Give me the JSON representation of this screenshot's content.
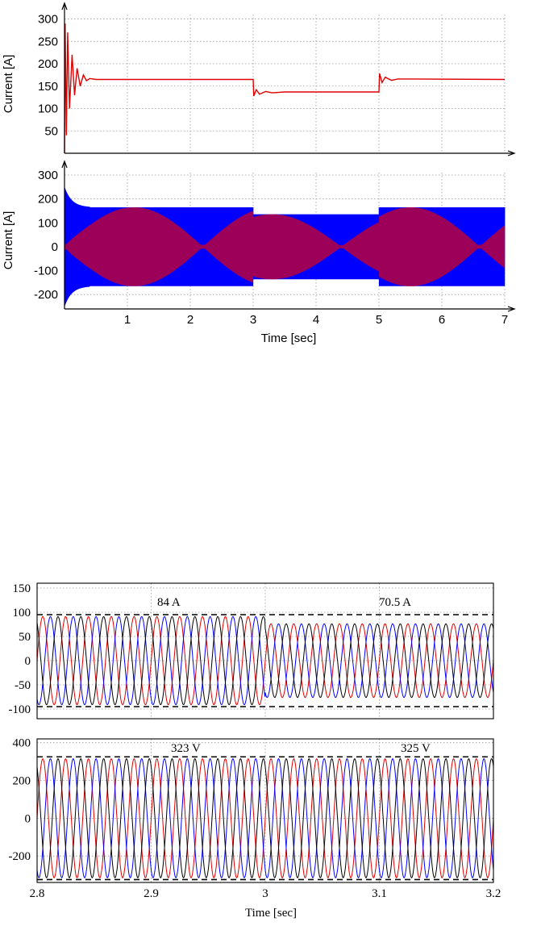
{
  "colors": {
    "phase_a": "#e00000",
    "phase_b": "#0000ff",
    "phase_c": "#000000",
    "top_phase2": "#d00020"
  },
  "chart_data": [
    {
      "type": "line",
      "ylabel": "Current [A]",
      "xlabel": "",
      "xlim": [
        0,
        7
      ],
      "ylim": [
        0,
        310
      ],
      "x_ticks": [
        1,
        2,
        3,
        4,
        5,
        6,
        7
      ],
      "y_ticks": [
        50,
        100,
        150,
        200,
        250,
        300
      ],
      "grid": true,
      "series": [
        {
          "color": "#e00000",
          "points": [
            [
              0.0,
              0
            ],
            [
              0.01,
              290
            ],
            [
              0.03,
              40
            ],
            [
              0.05,
              270
            ],
            [
              0.08,
              100
            ],
            [
              0.12,
              220
            ],
            [
              0.16,
              130
            ],
            [
              0.2,
              190
            ],
            [
              0.25,
              150
            ],
            [
              0.3,
              175
            ],
            [
              0.35,
              162
            ],
            [
              0.4,
              167
            ],
            [
              0.5,
              165
            ],
            [
              3.0,
              165
            ],
            [
              3.01,
              128
            ],
            [
              3.05,
              142
            ],
            [
              3.1,
              132
            ],
            [
              3.2,
              138
            ],
            [
              3.3,
              135
            ],
            [
              3.5,
              137
            ],
            [
              5.0,
              137
            ],
            [
              5.01,
              178
            ],
            [
              5.05,
              158
            ],
            [
              5.1,
              170
            ],
            [
              5.2,
              163
            ],
            [
              5.3,
              166
            ],
            [
              7.0,
              165
            ]
          ]
        }
      ]
    },
    {
      "type": "line",
      "ylabel": "Current [A]",
      "xlabel": "Time [sec]",
      "xlim": [
        0,
        7
      ],
      "ylim": [
        -260,
        310
      ],
      "x_ticks": [
        1,
        2,
        3,
        4,
        5,
        6,
        7
      ],
      "y_ticks": [
        -200,
        -100,
        0,
        100,
        200,
        300
      ],
      "grid": true,
      "segments": [
        {
          "t": [
            0,
            3
          ],
          "amplitude": 165
        },
        {
          "t": [
            3,
            5
          ],
          "amplitude": 136
        },
        {
          "t": [
            5,
            7
          ],
          "amplitude": 165
        }
      ],
      "startup_peak": 250,
      "series": [
        {
          "color": "#0000ff"
        },
        {
          "color": "#d00020"
        }
      ]
    },
    {
      "type": "line",
      "ylabel": "",
      "xlabel": "",
      "xlim": [
        2.8,
        3.2
      ],
      "ylim": [
        -120,
        160
      ],
      "x_ticks": [
        2.8,
        2.9,
        3.0,
        3.1,
        3.2
      ],
      "y_ticks": [
        -100,
        -50,
        0,
        50,
        100,
        150
      ],
      "y_tick_labels": [
        "-100",
        "-50",
        "0",
        "50",
        "100",
        "150"
      ],
      "grid": true,
      "frequency_hz": 50,
      "amplitude_before": 91,
      "amplitude_after": 76,
      "reference_peak": 95,
      "annotations": [
        "84 A",
        "70.5 A"
      ],
      "series": [
        {
          "color": "#e00000"
        },
        {
          "color": "#0000ff"
        },
        {
          "color": "#000000"
        }
      ]
    },
    {
      "type": "line",
      "ylabel": "",
      "xlabel": "Time [sec]",
      "xlim": [
        2.8,
        3.2
      ],
      "ylim": [
        -340,
        420
      ],
      "x_ticks": [
        2.8,
        2.9,
        3.0,
        3.1,
        3.2
      ],
      "x_tick_labels": [
        "2.8",
        "2.9",
        "3",
        "3.1",
        "3.2"
      ],
      "y_ticks": [
        -200,
        0,
        200,
        400
      ],
      "y_tick_labels": [
        "-200",
        "0",
        "200",
        "400"
      ],
      "grid": true,
      "frequency_hz": 50,
      "amplitude": 315,
      "reference_peak": 325,
      "annotations": [
        "323 V",
        "325 V"
      ],
      "series": [
        {
          "color": "#e00000"
        },
        {
          "color": "#0000ff"
        },
        {
          "color": "#000000"
        }
      ]
    }
  ]
}
